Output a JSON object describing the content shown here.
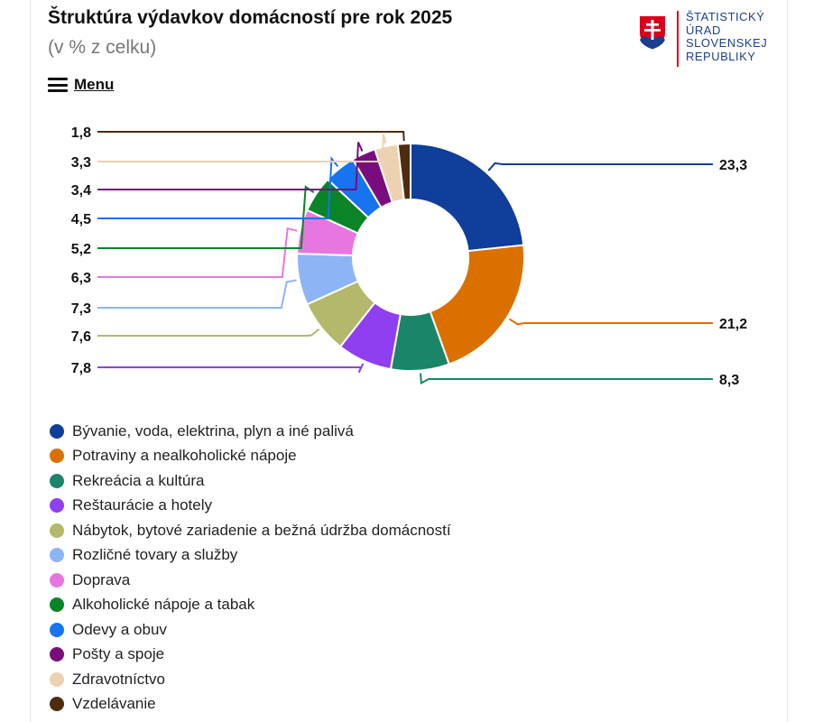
{
  "header": {
    "title": "Štruktúra výdavkov domácností pre rok 2025",
    "subtitle": "(v % z celku)",
    "menu_label": "Menu"
  },
  "logo": {
    "lines": [
      "ŠTATISTICKÝ",
      "ÚRAD",
      "SLOVENSKEJ",
      "REPUBLIKY"
    ]
  },
  "chart_data": {
    "type": "pie",
    "variant": "donut",
    "title": "Štruktúra výdavkov domácností pre rok 2025",
    "subtitle": "(v % z celku)",
    "unit": "%",
    "legend_position": "bottom",
    "data_label_decimal": ",",
    "categories": [
      "Bývanie, voda, elektrina, plyn a iné palivá",
      "Potraviny a nealkoholické nápoje",
      "Rekreácia a kultúra",
      "Reštaurácie a hotely",
      "Nábytok, bytové zariadenie a bežná údržba domácností",
      "Rozličné tovary a služby",
      "Doprava",
      "Alkoholické nápoje a tabak",
      "Odevy a obuv",
      "Pošty a spoje",
      "Zdravotníctvo",
      "Vzdelávanie"
    ],
    "values": [
      23.3,
      21.2,
      8.3,
      7.8,
      7.6,
      7.3,
      6.3,
      5.2,
      4.5,
      3.4,
      3.3,
      1.8
    ],
    "labels": [
      "23,3",
      "21,2",
      "8,3",
      "7,8",
      "7,6",
      "7,3",
      "6,3",
      "5,2",
      "4,5",
      "3,4",
      "3,3",
      "1,8"
    ],
    "colors": [
      "#0f3f9a",
      "#d97000",
      "#1a8568",
      "#8f3ff0",
      "#b3b86a",
      "#8db4f5",
      "#e777e0",
      "#0a8426",
      "#1873f0",
      "#7a0d7d",
      "#ecd2b1",
      "#4d2c0d"
    ]
  }
}
